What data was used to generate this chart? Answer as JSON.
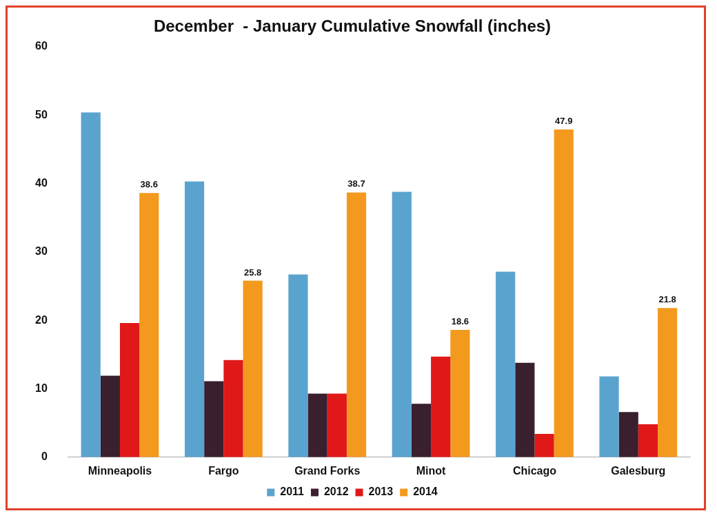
{
  "chart_data": {
    "type": "bar",
    "title": "December  - January Cumulative Snowfall (inches)",
    "categories": [
      "Minneapolis",
      "Fargo",
      "Grand Forks",
      "Minot",
      "Chicago",
      "Galesburg"
    ],
    "series": [
      {
        "name": "2011",
        "color": "#5ba3cf",
        "values": [
          50.4,
          40.3,
          26.7,
          38.8,
          27.1,
          11.8
        ]
      },
      {
        "name": "2012",
        "color": "#3a1f2e",
        "values": [
          11.9,
          11.1,
          9.3,
          7.8,
          13.8,
          6.6
        ]
      },
      {
        "name": "2013",
        "color": "#e01818",
        "values": [
          19.6,
          14.2,
          9.3,
          14.7,
          3.4,
          4.8
        ]
      },
      {
        "name": "2014",
        "color": "#f39a1e",
        "values": [
          38.6,
          25.8,
          38.7,
          18.6,
          47.9,
          21.8
        ],
        "value_labels": [
          "38.6",
          "25.8",
          "38.7",
          "18.6",
          "47.9",
          "21.8"
        ]
      }
    ],
    "ylim": [
      0,
      60
    ],
    "yticks": [
      0,
      10,
      20,
      30,
      40,
      50,
      60
    ],
    "grid": false,
    "legend": "bottom"
  }
}
